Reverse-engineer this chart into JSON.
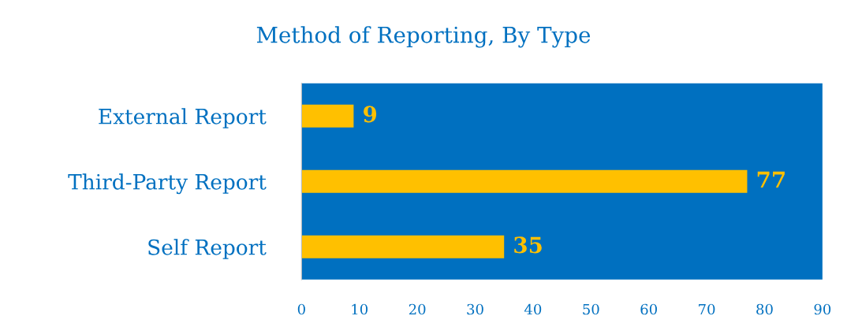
{
  "chart_data": {
    "type": "bar",
    "title": "Method of Reporting, By Type",
    "orientation": "horizontal",
    "categories": [
      "External Report",
      "Third-Party Report",
      "Self Report"
    ],
    "values": [
      9,
      77,
      35
    ],
    "color": "#ffc000",
    "xlim": [
      0,
      90
    ],
    "xticks": [
      0,
      10,
      20,
      30,
      40,
      50,
      60,
      70,
      80,
      90
    ],
    "data_labels": true,
    "grid": false,
    "legend": false
  }
}
